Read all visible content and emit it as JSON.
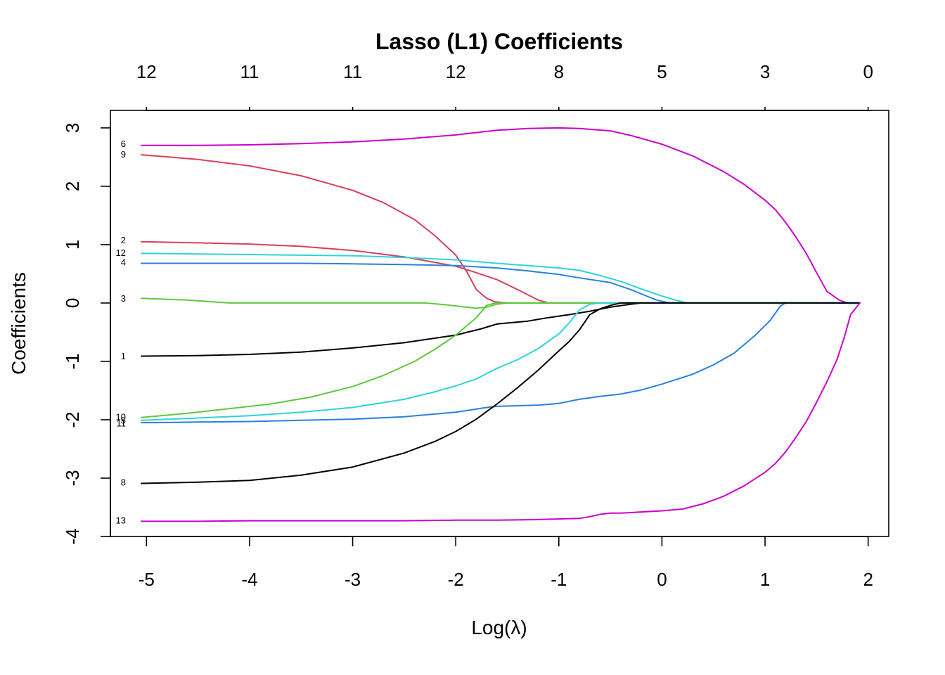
{
  "chart_data": {
    "type": "line",
    "title": "Lasso (L1) Coefficients",
    "xlabel": "Log(λ)",
    "ylabel": "Coefficients",
    "xlim": [
      -5.35,
      2.2
    ],
    "ylim": [
      -4,
      3.3
    ],
    "x_ticks": [
      -5,
      -4,
      -3,
      -2,
      -1,
      0,
      1,
      2
    ],
    "y_ticks": [
      -4,
      -3,
      -2,
      -1,
      0,
      1,
      2,
      3
    ],
    "top_ticks": [
      {
        "x": -5,
        "label": "12"
      },
      {
        "x": -4,
        "label": "11"
      },
      {
        "x": -3,
        "label": "11"
      },
      {
        "x": -2,
        "label": "12"
      },
      {
        "x": -1,
        "label": "8"
      },
      {
        "x": 0,
        "label": "5"
      },
      {
        "x": 1,
        "label": "3"
      },
      {
        "x": 2,
        "label": "0"
      }
    ],
    "grid": false,
    "series": [
      {
        "name": "6",
        "color": "#CC00CC",
        "points": [
          [
            -5.05,
            2.7
          ],
          [
            -4.5,
            2.7
          ],
          [
            -4,
            2.71
          ],
          [
            -3.5,
            2.73
          ],
          [
            -3,
            2.76
          ],
          [
            -2.5,
            2.81
          ],
          [
            -2,
            2.88
          ],
          [
            -1.6,
            2.96
          ],
          [
            -1.3,
            2.99
          ],
          [
            -1,
            3.0
          ],
          [
            -0.8,
            2.99
          ],
          [
            -0.5,
            2.95
          ],
          [
            -0.3,
            2.87
          ],
          [
            0,
            2.72
          ],
          [
            0.3,
            2.52
          ],
          [
            0.6,
            2.25
          ],
          [
            0.8,
            2.03
          ],
          [
            1.0,
            1.76
          ],
          [
            1.1,
            1.6
          ],
          [
            1.2,
            1.38
          ],
          [
            1.3,
            1.13
          ],
          [
            1.4,
            0.85
          ],
          [
            1.5,
            0.52
          ],
          [
            1.6,
            0.2
          ],
          [
            1.72,
            0.05
          ],
          [
            1.8,
            0.0
          ],
          [
            1.92,
            0.0
          ]
        ]
      },
      {
        "name": "9",
        "color": "#D83F5B",
        "points": [
          [
            -5.05,
            2.54
          ],
          [
            -4.5,
            2.46
          ],
          [
            -4,
            2.35
          ],
          [
            -3.5,
            2.18
          ],
          [
            -3,
            1.93
          ],
          [
            -2.7,
            1.72
          ],
          [
            -2.4,
            1.43
          ],
          [
            -2.2,
            1.15
          ],
          [
            -2,
            0.82
          ],
          [
            -1.9,
            0.56
          ],
          [
            -1.8,
            0.23
          ],
          [
            -1.7,
            0.08
          ],
          [
            -1.62,
            0.02
          ],
          [
            -1.5,
            0.0
          ],
          [
            1.92,
            0.0
          ]
        ]
      },
      {
        "name": "2",
        "color": "#D83F5B",
        "points": [
          [
            -5.05,
            1.05
          ],
          [
            -4.5,
            1.03
          ],
          [
            -4,
            1.01
          ],
          [
            -3.5,
            0.97
          ],
          [
            -3,
            0.9
          ],
          [
            -2.5,
            0.79
          ],
          [
            -2,
            0.63
          ],
          [
            -1.8,
            0.52
          ],
          [
            -1.6,
            0.4
          ],
          [
            -1.4,
            0.23
          ],
          [
            -1.2,
            0.05
          ],
          [
            -1.1,
            0.0
          ],
          [
            1.92,
            0.0
          ]
        ]
      },
      {
        "name": "12",
        "color": "#2FD3DA",
        "points": [
          [
            -5.05,
            0.85
          ],
          [
            -4.5,
            0.84
          ],
          [
            -4,
            0.83
          ],
          [
            -3.5,
            0.82
          ],
          [
            -3,
            0.81
          ],
          [
            -2.5,
            0.78
          ],
          [
            -2,
            0.74
          ],
          [
            -1.6,
            0.68
          ],
          [
            -1.3,
            0.64
          ],
          [
            -1,
            0.6
          ],
          [
            -0.8,
            0.56
          ],
          [
            -0.6,
            0.47
          ],
          [
            -0.4,
            0.37
          ],
          [
            -0.2,
            0.24
          ],
          [
            0,
            0.12
          ],
          [
            0.15,
            0.04
          ],
          [
            0.25,
            0.0
          ],
          [
            1.92,
            0.0
          ]
        ]
      },
      {
        "name": "4",
        "color": "#2A80DE",
        "points": [
          [
            -5.05,
            0.68
          ],
          [
            -4.5,
            0.68
          ],
          [
            -4,
            0.68
          ],
          [
            -3.5,
            0.68
          ],
          [
            -3,
            0.67
          ],
          [
            -2.5,
            0.66
          ],
          [
            -2,
            0.64
          ],
          [
            -1.6,
            0.6
          ],
          [
            -1.3,
            0.55
          ],
          [
            -1,
            0.49
          ],
          [
            -0.8,
            0.43
          ],
          [
            -0.5,
            0.35
          ],
          [
            -0.3,
            0.23
          ],
          [
            -0.15,
            0.12
          ],
          [
            -0.05,
            0.05
          ],
          [
            0.05,
            0.01
          ],
          [
            0.1,
            0.0
          ],
          [
            1.92,
            0.0
          ]
        ]
      },
      {
        "name": "3",
        "color": "#5CC93D",
        "points": [
          [
            -5.05,
            0.08
          ],
          [
            -4.6,
            0.05
          ],
          [
            -4.2,
            0.0
          ],
          [
            -3.5,
            0.0
          ],
          [
            -3,
            0.0
          ],
          [
            -2.5,
            0.0
          ],
          [
            -2.3,
            0.0
          ],
          [
            -2.1,
            -0.03
          ],
          [
            -1.9,
            -0.07
          ],
          [
            -1.8,
            -0.09
          ],
          [
            -1.7,
            -0.07
          ],
          [
            -1.6,
            -0.02
          ],
          [
            -1.5,
            0.0
          ],
          [
            1.92,
            0.0
          ]
        ]
      },
      {
        "name": "1",
        "color": "#000000",
        "points": [
          [
            -5.05,
            -0.91
          ],
          [
            -4.5,
            -0.9
          ],
          [
            -4,
            -0.88
          ],
          [
            -3.5,
            -0.84
          ],
          [
            -3,
            -0.77
          ],
          [
            -2.5,
            -0.68
          ],
          [
            -2,
            -0.55
          ],
          [
            -1.75,
            -0.44
          ],
          [
            -1.6,
            -0.36
          ],
          [
            -1.3,
            -0.31
          ],
          [
            -1.1,
            -0.25
          ],
          [
            -0.9,
            -0.2
          ],
          [
            -0.7,
            -0.14
          ],
          [
            -0.5,
            -0.07
          ],
          [
            -0.3,
            -0.02
          ],
          [
            -0.2,
            0.0
          ],
          [
            1.92,
            0.0
          ]
        ]
      },
      {
        "name": "10",
        "color": "#5CC93D",
        "points": [
          [
            -5.05,
            -1.96
          ],
          [
            -4.6,
            -1.89
          ],
          [
            -4.2,
            -1.81
          ],
          [
            -3.8,
            -1.73
          ],
          [
            -3.4,
            -1.61
          ],
          [
            -3,
            -1.43
          ],
          [
            -2.7,
            -1.24
          ],
          [
            -2.4,
            -1.0
          ],
          [
            -2.2,
            -0.79
          ],
          [
            -2,
            -0.55
          ],
          [
            -1.8,
            -0.25
          ],
          [
            -1.7,
            -0.04
          ],
          [
            -1.62,
            0.0
          ],
          [
            1.92,
            0.0
          ]
        ]
      },
      {
        "name": "5",
        "color": "#2FD3DA",
        "points": [
          [
            -5.05,
            -2.01
          ],
          [
            -4.5,
            -1.97
          ],
          [
            -4,
            -1.93
          ],
          [
            -3.5,
            -1.87
          ],
          [
            -3,
            -1.79
          ],
          [
            -2.5,
            -1.65
          ],
          [
            -2.2,
            -1.52
          ],
          [
            -2,
            -1.42
          ],
          [
            -1.8,
            -1.3
          ],
          [
            -1.6,
            -1.12
          ],
          [
            -1.4,
            -0.97
          ],
          [
            -1.2,
            -0.78
          ],
          [
            -1,
            -0.53
          ],
          [
            -0.9,
            -0.34
          ],
          [
            -0.8,
            -0.12
          ],
          [
            -0.7,
            -0.02
          ],
          [
            -0.6,
            0.0
          ],
          [
            1.92,
            0.0
          ]
        ]
      },
      {
        "name": "11",
        "color": "#2A80DE",
        "points": [
          [
            -5.05,
            -2.05
          ],
          [
            -4.5,
            -2.04
          ],
          [
            -4,
            -2.03
          ],
          [
            -3.5,
            -2.01
          ],
          [
            -3,
            -1.99
          ],
          [
            -2.5,
            -1.95
          ],
          [
            -2,
            -1.87
          ],
          [
            -1.7,
            -1.79
          ],
          [
            -1.6,
            -1.77
          ],
          [
            -1.2,
            -1.75
          ],
          [
            -1,
            -1.72
          ],
          [
            -0.8,
            -1.65
          ],
          [
            -0.6,
            -1.6
          ],
          [
            -0.4,
            -1.56
          ],
          [
            -0.2,
            -1.49
          ],
          [
            0,
            -1.39
          ],
          [
            0.3,
            -1.22
          ],
          [
            0.5,
            -1.06
          ],
          [
            0.7,
            -0.86
          ],
          [
            0.9,
            -0.56
          ],
          [
            1.05,
            -0.3
          ],
          [
            1.15,
            -0.05
          ],
          [
            1.2,
            0.0
          ],
          [
            1.92,
            0.0
          ]
        ]
      },
      {
        "name": "8",
        "color": "#000000",
        "points": [
          [
            -5.05,
            -3.09
          ],
          [
            -4.5,
            -3.07
          ],
          [
            -4,
            -3.04
          ],
          [
            -3.5,
            -2.95
          ],
          [
            -3,
            -2.81
          ],
          [
            -2.5,
            -2.57
          ],
          [
            -2.2,
            -2.37
          ],
          [
            -2,
            -2.2
          ],
          [
            -1.8,
            -1.99
          ],
          [
            -1.6,
            -1.73
          ],
          [
            -1.4,
            -1.45
          ],
          [
            -1.2,
            -1.15
          ],
          [
            -1.0,
            -0.82
          ],
          [
            -0.9,
            -0.66
          ],
          [
            -0.8,
            -0.46
          ],
          [
            -0.7,
            -0.2
          ],
          [
            -0.6,
            -0.1
          ],
          [
            -0.5,
            -0.04
          ],
          [
            -0.4,
            0.0
          ],
          [
            1.92,
            0.0
          ]
        ]
      },
      {
        "name": "13",
        "color": "#CC00CC",
        "points": [
          [
            -5.05,
            -3.74
          ],
          [
            -4.5,
            -3.74
          ],
          [
            -4,
            -3.73
          ],
          [
            -3.5,
            -3.73
          ],
          [
            -3,
            -3.73
          ],
          [
            -2.5,
            -3.73
          ],
          [
            -2,
            -3.72
          ],
          [
            -1.6,
            -3.72
          ],
          [
            -1.2,
            -3.71
          ],
          [
            -0.8,
            -3.69
          ],
          [
            -0.7,
            -3.66
          ],
          [
            -0.6,
            -3.62
          ],
          [
            -0.5,
            -3.6
          ],
          [
            -0.4,
            -3.6
          ],
          [
            -0.2,
            -3.58
          ],
          [
            0,
            -3.56
          ],
          [
            0.2,
            -3.53
          ],
          [
            0.4,
            -3.44
          ],
          [
            0.6,
            -3.31
          ],
          [
            0.8,
            -3.13
          ],
          [
            1.0,
            -2.9
          ],
          [
            1.1,
            -2.75
          ],
          [
            1.2,
            -2.55
          ],
          [
            1.3,
            -2.3
          ],
          [
            1.4,
            -2.03
          ],
          [
            1.5,
            -1.7
          ],
          [
            1.6,
            -1.35
          ],
          [
            1.7,
            -0.96
          ],
          [
            1.77,
            -0.58
          ],
          [
            1.83,
            -0.2
          ],
          [
            1.92,
            0.0
          ]
        ]
      }
    ],
    "label_groups": [
      {
        "text": "6",
        "y": 2.73
      },
      {
        "text": "9",
        "y": 2.55
      },
      {
        "text": "2",
        "y": 1.08
      },
      {
        "text": "12",
        "y": 0.86
      },
      {
        "text": "4",
        "y": 0.7
      },
      {
        "text": "3",
        "y": 0.08
      },
      {
        "text": "1",
        "y": -0.91
      },
      {
        "text": "10",
        "y": -1.95
      },
      {
        "text": "5",
        "y": -2.01
      },
      {
        "text": "11",
        "y": -2.06
      },
      {
        "text": "8",
        "y": -3.07
      },
      {
        "text": "13",
        "y": -3.72
      }
    ]
  }
}
